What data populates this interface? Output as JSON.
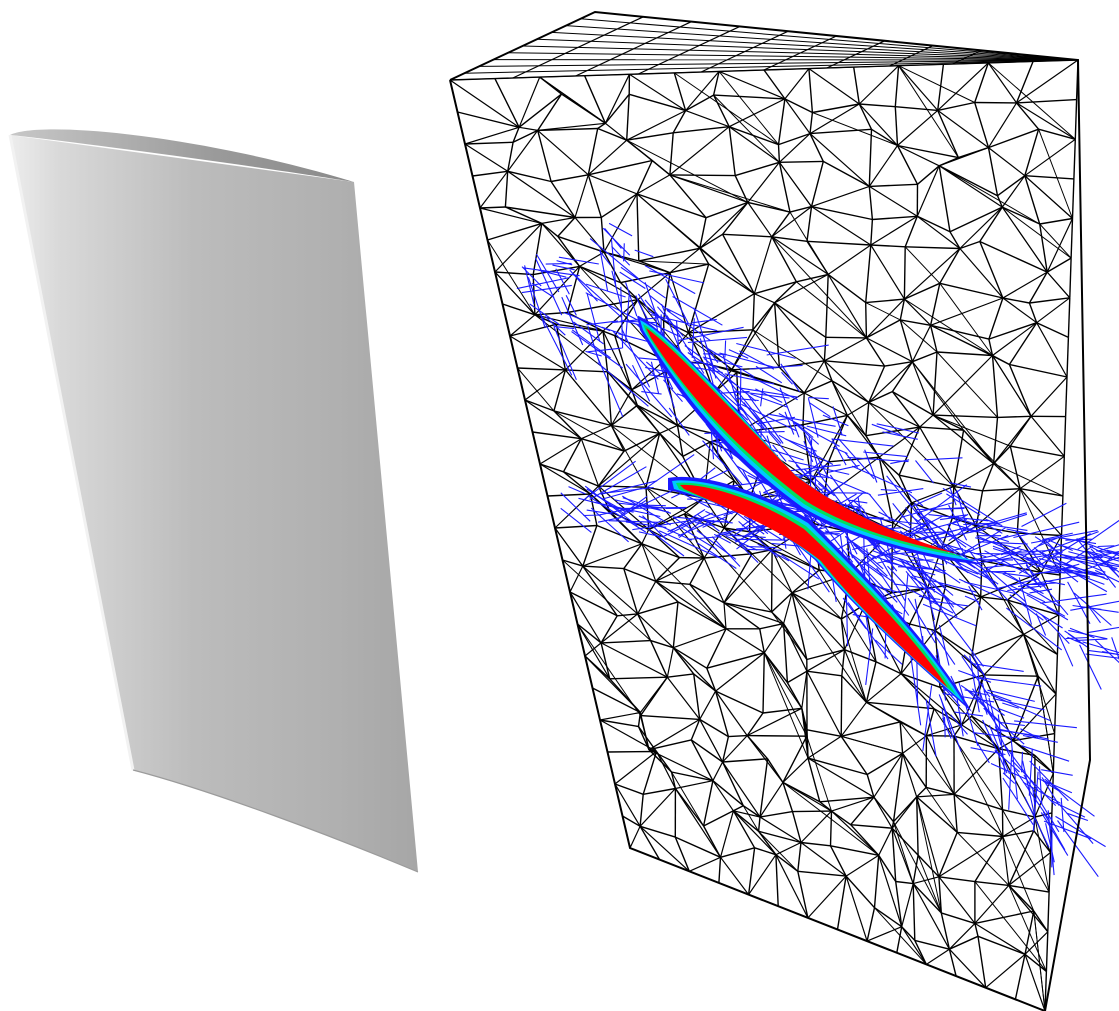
{
  "figure": {
    "panels": [
      {
        "name": "wing-surface",
        "kind": "shaded surface",
        "colors": {
          "light": "#e6e6e6",
          "mid": "#bdbdbd",
          "dark": "#8a8a8a"
        }
      },
      {
        "name": "volume-mesh",
        "kind": "tetrahedral wireframe",
        "colors": {
          "edges": "#000000",
          "refined_edges": "#1a1aff"
        }
      }
    ],
    "field_colormap": [
      "#1a1aff",
      "#00c8ff",
      "#00e060",
      "#ffff00",
      "#ff0000"
    ],
    "background": "#ffffff"
  }
}
